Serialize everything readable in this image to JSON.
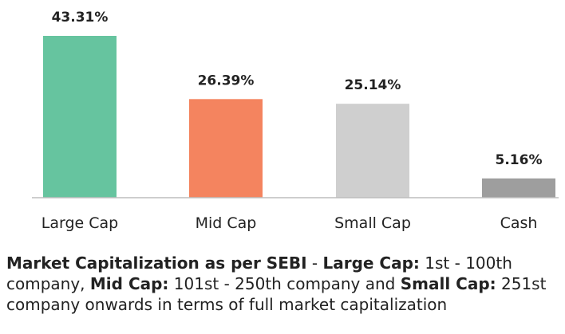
{
  "chart_data": {
    "type": "bar",
    "categories": [
      "Large Cap",
      "Mid Cap",
      "Small Cap",
      "Cash"
    ],
    "values": [
      43.31,
      26.39,
      25.14,
      5.16
    ],
    "value_labels": [
      "43.31%",
      "26.39%",
      "25.14%",
      "5.16%"
    ],
    "colors": [
      "#66c49f",
      "#f4845f",
      "#cfcfcf",
      "#9e9e9e"
    ],
    "axis_color": "#bdbdbd",
    "title": "",
    "xlabel": "",
    "ylabel": "",
    "ylim": [
      0,
      43.31
    ],
    "grid": false,
    "legend": "none"
  },
  "footnote": {
    "part1_bold": "Market Capitalization as per SEBI",
    "part2": " - ",
    "part3_bold": "Large Cap:",
    "part4": " 1st - 100th company, ",
    "part5_bold": "Mid Cap:",
    "part6": " 101st - 250th company and ",
    "part7_bold": "Small Cap:",
    "part8": " 251st company onwards in terms of full market capitalization"
  }
}
